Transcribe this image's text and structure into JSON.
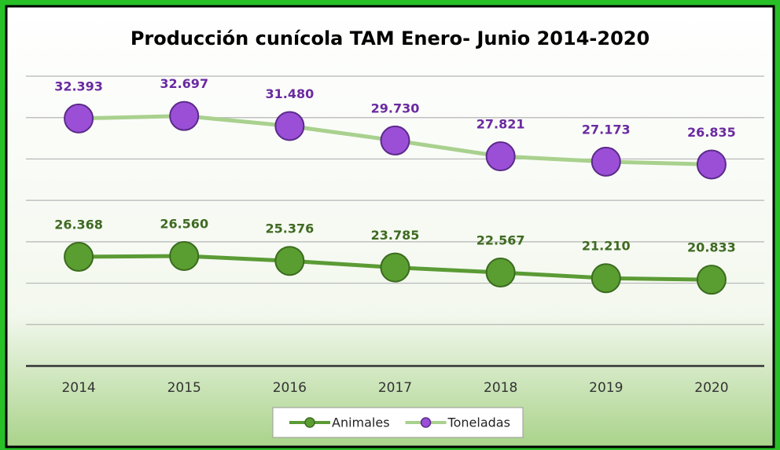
{
  "chart_data": {
    "type": "line",
    "title": "Producción cunícola TAM Enero- Junio 2014-2020",
    "categories": [
      "2014",
      "2015",
      "2016",
      "2017",
      "2018",
      "2019",
      "2020"
    ],
    "series": [
      {
        "name": "Animales",
        "color": "#5b9b35",
        "marker_color": "#5a9e32",
        "values": [
          26.368,
          26.56,
          25.376,
          23.785,
          22.567,
          21.21,
          20.833
        ],
        "value_labels": [
          "26.368",
          "26.560",
          "25.376",
          "23.785",
          "22.567",
          "21.210",
          "20.833"
        ]
      },
      {
        "name": "Toneladas",
        "color": "#a9d18e",
        "marker_color": "#9b4fd6",
        "axis": "y2",
        "values": [
          32.393,
          32.697,
          31.48,
          29.73,
          27.821,
          27.173,
          26.835
        ],
        "value_labels": [
          "32.393",
          "32.697",
          "31.480",
          "29.730",
          "27.821",
          "27.173",
          "26.835"
        ]
      }
    ],
    "ylim": [
      0,
      70
    ],
    "yticks": [
      0,
      10,
      20,
      30,
      40,
      50,
      60,
      70
    ],
    "y2lim": [
      2.5,
      37.5
    ],
    "grid": true,
    "legend": "bottom"
  }
}
